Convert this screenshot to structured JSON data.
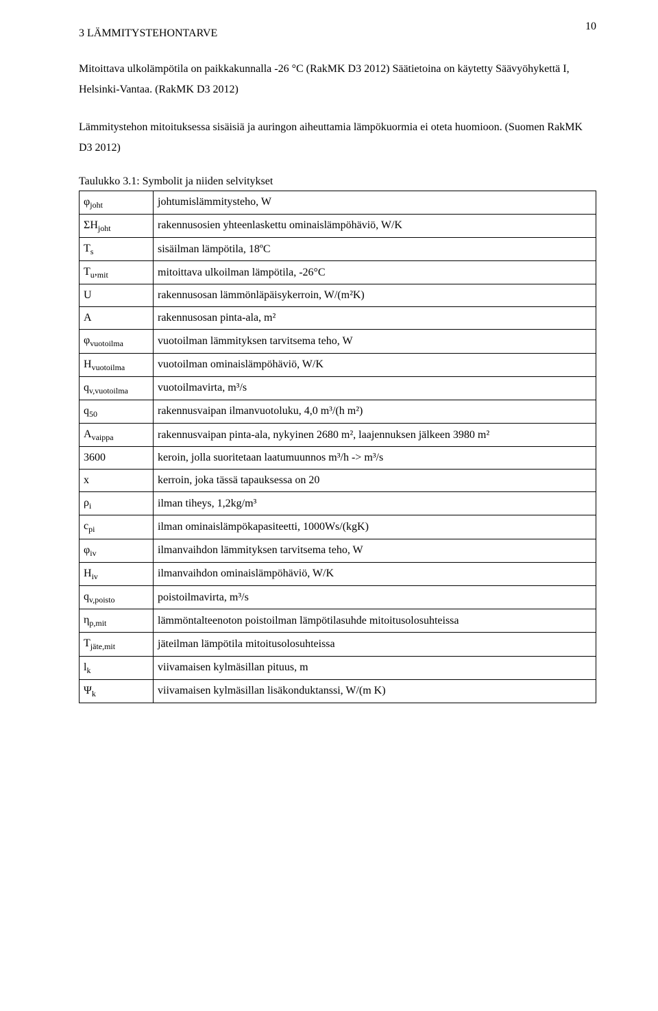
{
  "page_number": "10",
  "section_heading": "3  LÄMMITYSTEHONTARVE",
  "paragraph1": "Mitoittava ulkolämpötila on paikkakunnalla -26 °C (RakMK D3 2012) Säätietoina on käytetty Säävyöhykettä I, Helsinki-Vantaa. (RakMK D3 2012)",
  "paragraph2": "Lämmitystehon mitoituksessa sisäisiä ja auringon aiheuttamia lämpökuormia ei oteta huomioon. (Suomen RakMK D3 2012)",
  "table_caption": "Taulukko 3.1: Symbolit ja niiden selvitykset",
  "rows": [
    {
      "sym_html": "φ<sub>joht</sub>",
      "desc": "johtumislämmitysteho, W"
    },
    {
      "sym_html": "ΣH<sub>joht</sub>",
      "desc": "rakennusosien yhteenlaskettu ominaislämpöhäviö, W/K"
    },
    {
      "sym_html": "T<sub>s</sub>",
      "desc": "sisäilman lämpötila, 18ºC"
    },
    {
      "sym_html": "T<sub>u</sub>,<sub>mit</sub>",
      "desc": "mitoittava ulkoilman lämpötila, -26°C"
    },
    {
      "sym_html": "U",
      "desc": "rakennusosan lämmönläpäisykerroin, W/(m²K)"
    },
    {
      "sym_html": "A",
      "desc": "rakennusosan pinta-ala, m²"
    },
    {
      "sym_html": "φ<sub>vuotoilma</sub>",
      "desc": "vuotoilman lämmityksen tarvitsema teho, W"
    },
    {
      "sym_html": "H<sub>vuotoilma</sub>",
      "desc": "vuotoilman ominaislämpöhäviö, W/K"
    },
    {
      "sym_html": "q<sub>v,vuotoilma</sub>",
      "desc": "vuotoilmavirta, m³/s"
    },
    {
      "sym_html": "q<sub>50</sub>",
      "desc": "rakennusvaipan ilmanvuotoluku, 4,0 m³/(h m²)"
    },
    {
      "sym_html": "A<sub>vaippa</sub>",
      "desc": "rakennusvaipan pinta-ala, nykyinen 2680 m², laajennuksen jälkeen 3980 m²"
    },
    {
      "sym_html": "3600",
      "desc": "keroin, jolla suoritetaan laatumuunnos m³/h -> m³/s"
    },
    {
      "sym_html": "x",
      "desc": "kerroin, joka tässä tapauksessa on 20"
    },
    {
      "sym_html": "ρ<sub>i</sub>",
      "desc": "ilman tiheys, 1,2kg/m³"
    },
    {
      "sym_html": "c<sub>pi</sub>",
      "desc": "ilman ominaislämpökapasiteetti, 1000Ws/(kgK)"
    },
    {
      "sym_html": "φ<sub>iv</sub>",
      "desc": "ilmanvaihdon lämmityksen tarvitsema teho, W"
    },
    {
      "sym_html": "H<sub>iv</sub>",
      "desc": "ilmanvaihdon ominaislämpöhäviö, W/K"
    },
    {
      "sym_html": "q<sub>v,poisto</sub>",
      "desc": "poistoilmavirta, m³/s"
    },
    {
      "sym_html": "η<sub>p,mit</sub>",
      "desc": "lämmöntalteenoton poistoilman lämpötilasuhde mitoitusolosuhteissa"
    },
    {
      "sym_html": "T<sub>jäte,mit</sub>",
      "desc": "jäteilman lämpötila mitoitusolosuhteissa"
    },
    {
      "sym_html": "l<sub>k</sub>",
      "desc": "viivamaisen kylmäsillan pituus, m"
    },
    {
      "sym_html": "Ψ<sub>k</sub>",
      "desc": "viivamaisen kylmäsillan lisäkonduktanssi, W/(m K)"
    }
  ]
}
